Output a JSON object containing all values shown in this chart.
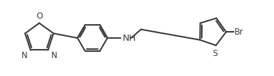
{
  "bg_color": "#ffffff",
  "line_color": "#3a3a3a",
  "lw": 1.5,
  "fs": 8.5,
  "figsize": [
    3.95,
    1.1
  ],
  "dpi": 100,
  "xlim": [
    0.0,
    9.5
  ],
  "ylim": [
    0.3,
    2.7
  ]
}
